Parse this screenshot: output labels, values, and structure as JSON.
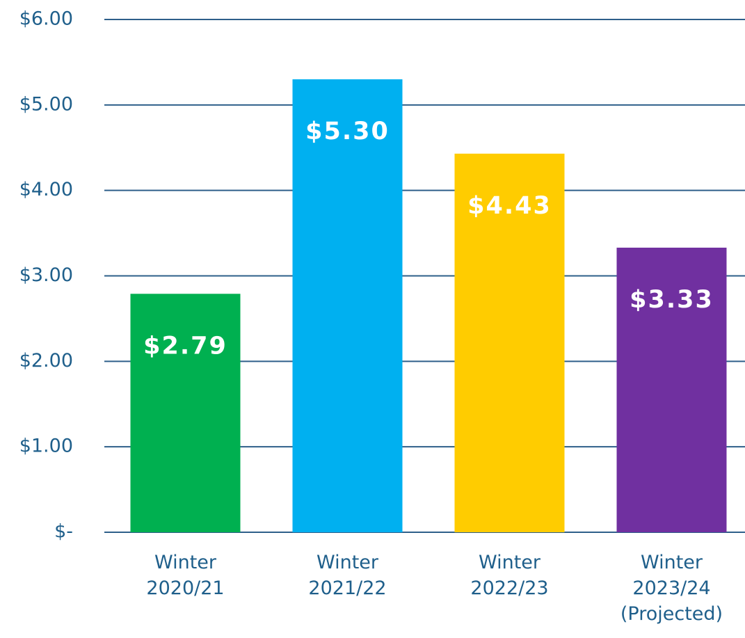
{
  "chart_data": {
    "type": "bar",
    "categories": [
      "Winter\n2020/21",
      "Winter\n2021/22",
      "Winter\n2022/23",
      "Winter\n2023/24\n(Projected)"
    ],
    "values": [
      2.79,
      5.3,
      4.43,
      3.33
    ],
    "value_labels": [
      "$2.79",
      "$5.30",
      "$4.43",
      "$3.33"
    ],
    "colors": [
      "#00b050",
      "#00b0f0",
      "#ffcc00",
      "#7030a0"
    ],
    "ylim": [
      0,
      6
    ],
    "yticks": [
      {
        "value": 0,
        "label": "$-"
      },
      {
        "value": 1,
        "label": "$1.00"
      },
      {
        "value": 2,
        "label": "$2.00"
      },
      {
        "value": 3,
        "label": "$3.00"
      },
      {
        "value": 4,
        "label": "$4.00"
      },
      {
        "value": 5,
        "label": "$5.00"
      },
      {
        "value": 6,
        "label": "$6.00"
      }
    ],
    "grid": true
  }
}
